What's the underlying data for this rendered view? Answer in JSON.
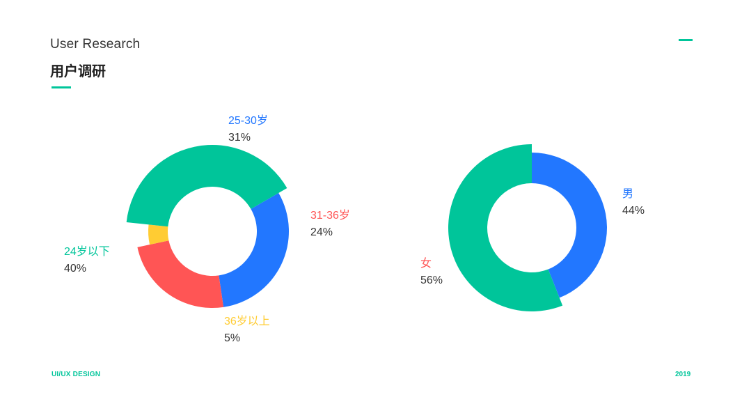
{
  "header": {
    "title_en": "User Research",
    "title_cn": "用户调研"
  },
  "footer": {
    "left": "UI/UX DESIGN",
    "right": "2019"
  },
  "colors": {
    "accent": "#00c59a",
    "blue": "#2277ff",
    "red": "#ff5555",
    "yellow": "#ffcc33",
    "green": "#00c59a"
  },
  "chart_data": [
    {
      "type": "pie",
      "slices": [
        {
          "label": "25-30岁",
          "value": 31,
          "percent": "31%",
          "color": "#2277ff"
        },
        {
          "label": "31-36岁",
          "value": 24,
          "percent": "24%",
          "color": "#ff5555"
        },
        {
          "label": "36岁以上",
          "value": 5,
          "percent": "5%",
          "color": "#ffcc33"
        },
        {
          "label": "24岁以下",
          "value": 40,
          "percent": "40%",
          "color": "#00c59a"
        }
      ]
    },
    {
      "type": "pie",
      "slices": [
        {
          "label": "男",
          "value": 44,
          "percent": "44%",
          "color": "#2277ff"
        },
        {
          "label": "女",
          "value": 56,
          "percent": "56%",
          "color": "#00c59a"
        }
      ]
    }
  ]
}
